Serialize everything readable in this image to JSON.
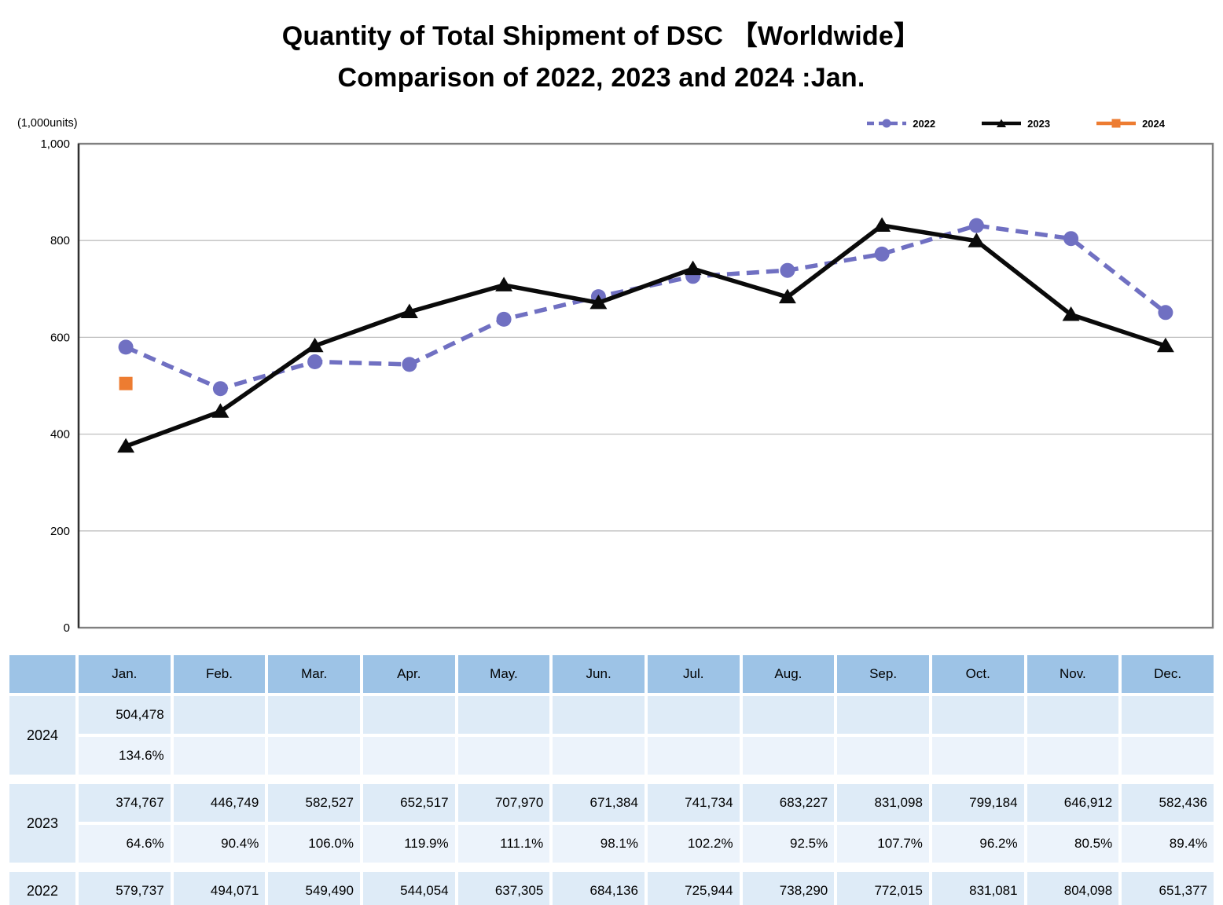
{
  "title": {
    "line1": "Quantity of Total Shipment of DSC 【Worldwide】",
    "line2": "Comparison of 2022, 2023 and 2024 :Jan."
  },
  "chart_data": {
    "type": "line",
    "title": "Quantity of Total Shipment of DSC 【Worldwide】 Comparison of 2022, 2023 and 2024 :Jan.",
    "unit_note": "(1,000units)",
    "xlabel": "",
    "ylabel": "1,000 units",
    "categories": [
      "Jan.",
      "Feb.",
      "Mar.",
      "Apr.",
      "May.",
      "Jun.",
      "Jul.",
      "Aug.",
      "Sep.",
      "Oct.",
      "Nov.",
      "Dec."
    ],
    "ylim": [
      0,
      1000
    ],
    "yticks": [
      0,
      200,
      400,
      600,
      800,
      1000
    ],
    "ytick_labels": [
      "0",
      "200",
      "400",
      "600",
      "800",
      "1,000"
    ],
    "grid": "horizontal",
    "legend_position": "top-right",
    "series": [
      {
        "name": "2022",
        "color": "#7070C2",
        "line": "dashed",
        "marker": "circle",
        "values": [
          579.737,
          494.071,
          549.49,
          544.054,
          637.305,
          684.136,
          725.944,
          738.29,
          772.015,
          831.081,
          804.098,
          651.377
        ]
      },
      {
        "name": "2023",
        "color": "#0A0A0A",
        "line": "solid",
        "marker": "triangle",
        "values": [
          374.767,
          446.749,
          582.527,
          652.517,
          707.97,
          671.384,
          741.734,
          683.227,
          831.098,
          799.184,
          646.912,
          582.436
        ]
      },
      {
        "name": "2024",
        "color": "#ED7C31",
        "line": "solid",
        "marker": "square",
        "values": [
          504.478
        ]
      }
    ]
  },
  "table": {
    "corner_label": "",
    "months": [
      "Jan.",
      "Feb.",
      "Mar.",
      "Apr.",
      "May.",
      "Jun.",
      "Jul.",
      "Aug.",
      "Sep.",
      "Oct.",
      "Nov.",
      "Dec."
    ],
    "groups": [
      {
        "year": "2024",
        "rows": [
          {
            "type": "value",
            "cells": [
              "504,478",
              "",
              "",
              "",
              "",
              "",
              "",
              "",
              "",
              "",
              "",
              ""
            ]
          },
          {
            "type": "percent",
            "cells": [
              "134.6%",
              "",
              "",
              "",
              "",
              "",
              "",
              "",
              "",
              "",
              "",
              ""
            ]
          }
        ]
      },
      {
        "year": "2023",
        "rows": [
          {
            "type": "value",
            "cells": [
              "374,767",
              "446,749",
              "582,527",
              "652,517",
              "707,970",
              "671,384",
              "741,734",
              "683,227",
              "831,098",
              "799,184",
              "646,912",
              "582,436"
            ]
          },
          {
            "type": "percent",
            "cells": [
              "64.6%",
              "90.4%",
              "106.0%",
              "119.9%",
              "111.1%",
              "98.1%",
              "102.2%",
              "92.5%",
              "107.7%",
              "96.2%",
              "80.5%",
              "89.4%"
            ]
          }
        ]
      },
      {
        "year": "2022",
        "rows": [
          {
            "type": "value",
            "cells": [
              "579,737",
              "494,071",
              "549,490",
              "544,054",
              "637,305",
              "684,136",
              "725,944",
              "738,290",
              "772,015",
              "831,081",
              "804,098",
              "651,377"
            ]
          }
        ]
      }
    ]
  }
}
